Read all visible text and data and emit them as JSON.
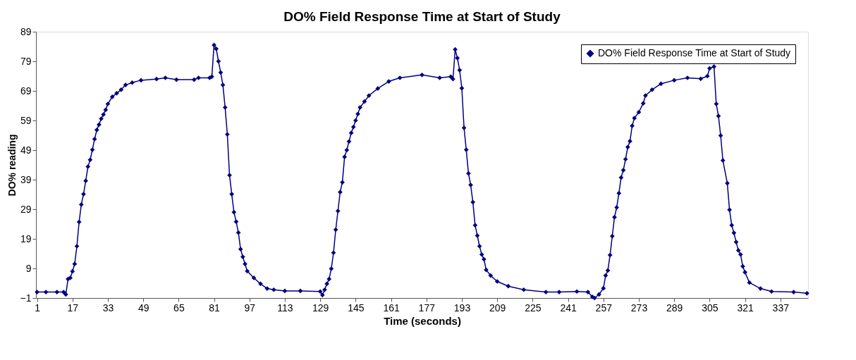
{
  "chart_data": {
    "type": "line",
    "title": "DO% Field Response Time at Start of Study",
    "xlabel": "Time (seconds)",
    "ylabel": "DO% reading",
    "series": [
      {
        "name": "DO% Field Response Time at Start of Study",
        "color": "#000080",
        "x": [
          1,
          5,
          10,
          13,
          14,
          15,
          16,
          17,
          18,
          19,
          20,
          21,
          22,
          23,
          24,
          25,
          26,
          27,
          28,
          29,
          30,
          31,
          32,
          33,
          35,
          37,
          39,
          41,
          44,
          48,
          55,
          59,
          64,
          72,
          74,
          79,
          80,
          81,
          82,
          83,
          84,
          85,
          86,
          87,
          88,
          89,
          90,
          91,
          92,
          93,
          94,
          95,
          96,
          99,
          102,
          105,
          108,
          113,
          120,
          129,
          130,
          131,
          132,
          133,
          134,
          135,
          136,
          137,
          138,
          139,
          140,
          141,
          142,
          143,
          144,
          145,
          146,
          147,
          149,
          151,
          155,
          160,
          165,
          175,
          183,
          188,
          189,
          190,
          191,
          192,
          193,
          194,
          195,
          196,
          197,
          198,
          199,
          200,
          201,
          202,
          203,
          204,
          206,
          209,
          214,
          221,
          231,
          237,
          245,
          250,
          252,
          253,
          255,
          257,
          258,
          259,
          260,
          261,
          262,
          263,
          264,
          265,
          266,
          267,
          268,
          269,
          270,
          271,
          273,
          275,
          276,
          279,
          283,
          289,
          295,
          301,
          304,
          305,
          307,
          308,
          309,
          310,
          311,
          313,
          314,
          315,
          316,
          317,
          318,
          319,
          320,
          321,
          323,
          328,
          333,
          343,
          349
        ],
        "values": [
          1,
          1,
          1,
          1,
          0.2,
          5.4,
          5.8,
          8,
          10.5,
          16.5,
          24.7,
          30.6,
          34.1,
          38.6,
          43.4,
          45.7,
          49.1,
          52.7,
          55.8,
          57.6,
          59.6,
          61,
          62.6,
          64.6,
          67,
          68.2,
          69.4,
          71,
          71.8,
          72.6,
          73,
          73.4,
          72.8,
          72.8,
          73.4,
          73.4,
          73.8,
          84.5,
          83.2,
          79,
          75.2,
          71,
          63.4,
          54.3,
          40.5,
          34.1,
          28,
          24.8,
          21.1,
          15.5,
          12.9,
          10.5,
          8.1,
          5.8,
          3.8,
          2.2,
          1.8,
          1.4,
          1.4,
          1.2,
          0,
          1.8,
          3.8,
          5.4,
          8.9,
          14.3,
          22.1,
          28.4,
          34.8,
          38.1,
          46.7,
          49,
          51.9,
          54.8,
          56.8,
          59,
          61.2,
          63.4,
          65.4,
          67.4,
          69.8,
          72.2,
          73.4,
          74.4,
          73.4,
          73.8,
          73,
          83,
          80.1,
          76,
          69.9,
          56.5,
          49.1,
          41.1,
          37.2,
          31.4,
          23.6,
          20.1,
          16.5,
          13.7,
          12.1,
          8.5,
          6.6,
          4.6,
          3,
          1.8,
          1,
          1,
          1.2,
          1,
          -0.6,
          -1,
          0.2,
          2.3,
          6.6,
          8.3,
          13.5,
          19.9,
          26.3,
          29.6,
          34.4,
          39.7,
          42.2,
          45.9,
          50,
          52,
          57.2,
          59.8,
          61.8,
          64.8,
          67.4,
          69.4,
          71.4,
          72.6,
          73.4,
          73.1,
          74,
          76.6,
          77.2,
          64.6,
          60.5,
          53.9,
          45.5,
          37.8,
          28.8,
          23.6,
          21,
          17.9,
          15.1,
          13.7,
          9.7,
          7.7,
          4.2,
          2.2,
          1.2,
          1,
          0.6
        ]
      }
    ],
    "xlim": [
      0.5,
      349.5
    ],
    "xticks": [
      1,
      17,
      33,
      49,
      65,
      81,
      97,
      113,
      129,
      145,
      161,
      177,
      193,
      209,
      225,
      241,
      257,
      273,
      289,
      305,
      321,
      337
    ],
    "ylim": [
      -1,
      89
    ],
    "yticks": [
      -1,
      9,
      19,
      29,
      39,
      49,
      59,
      69,
      79,
      89
    ],
    "grid": false,
    "legend": "top right",
    "marker": "diamond",
    "line_style": "solid"
  }
}
